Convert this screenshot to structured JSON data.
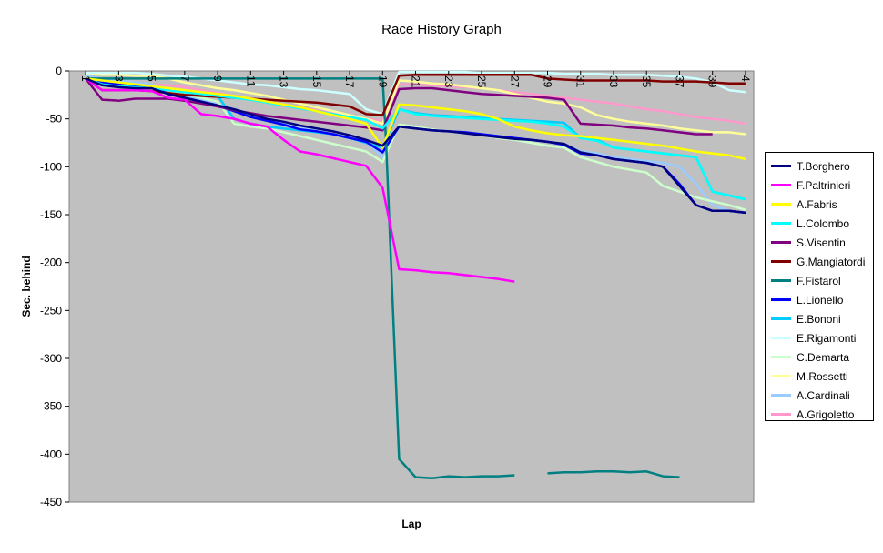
{
  "chart_data": {
    "type": "line",
    "title": "Race History Graph",
    "xlabel": "Lap",
    "ylabel": "Sec. behind",
    "xlim": [
      0,
      41.5
    ],
    "ylim": [
      -450,
      0
    ],
    "yticks": [
      0,
      -50,
      -100,
      -150,
      -200,
      -250,
      -300,
      -350,
      -400,
      -450
    ],
    "xticks": [
      "1",
      "3",
      "5",
      "7",
      "9",
      "11",
      "13",
      "15",
      "17",
      "19",
      "21",
      "23",
      "25",
      "27",
      "29",
      "31",
      "33",
      "35",
      "37",
      "39",
      "4"
    ],
    "grid": false,
    "background": "#c0c0c0",
    "legend_position": "right",
    "series": [
      {
        "name": "T.Borghero",
        "color": "#000080",
        "x": [
          1,
          2,
          3,
          4,
          5,
          6,
          7,
          8,
          9,
          10,
          11,
          12,
          13,
          14,
          15,
          16,
          17,
          18,
          19,
          20,
          21,
          22,
          23,
          24,
          25,
          26,
          27,
          28,
          29,
          30,
          31,
          32,
          33,
          34,
          35,
          36,
          37,
          38,
          39,
          40,
          41
        ],
        "y": [
          -8,
          -15,
          -17,
          -18,
          -18,
          -24,
          -28,
          -32,
          -36,
          -40,
          -45,
          -50,
          -53,
          -57,
          -60,
          -63,
          -67,
          -72,
          -78,
          -58,
          -60,
          -62,
          -63,
          -65,
          -67,
          -69,
          -71,
          -72,
          -74,
          -76,
          -85,
          -88,
          -92,
          -94,
          -96,
          -100,
          -120,
          -140,
          -146,
          -146,
          -148
        ]
      },
      {
        "name": "F.Paltrinieri",
        "color": "#ff00ff",
        "x": [
          1,
          2,
          3,
          4,
          5,
          6,
          7,
          8,
          9,
          10,
          11,
          12,
          13,
          14,
          15,
          16,
          17,
          18,
          19,
          20,
          21,
          22,
          23,
          24,
          25,
          26,
          27
        ],
        "y": [
          -8,
          -20,
          -20,
          -20,
          -21,
          -28,
          -30,
          -45,
          -47,
          -50,
          -55,
          -58,
          -72,
          -84,
          -87,
          -91,
          -95,
          -99,
          -122,
          -207,
          -208,
          -210,
          -211,
          -213,
          -215,
          -217,
          -220
        ]
      },
      {
        "name": "A.Fabris",
        "color": "#ffff00",
        "x": [
          1,
          2,
          3,
          4,
          5,
          6,
          7,
          8,
          9,
          10,
          11,
          12,
          13,
          14,
          15,
          16,
          17,
          18,
          19,
          20,
          21,
          22,
          23,
          24,
          25,
          26,
          27,
          28,
          29,
          30,
          31,
          32,
          33,
          34,
          35,
          36,
          37,
          38,
          39,
          40,
          41
        ],
        "y": [
          -8,
          -10,
          -12,
          -14,
          -16,
          -18,
          -20,
          -22,
          -24,
          -26,
          -29,
          -32,
          -35,
          -38,
          -42,
          -46,
          -50,
          -55,
          -80,
          -35,
          -36,
          -38,
          -40,
          -42,
          -45,
          -50,
          -58,
          -62,
          -65,
          -67,
          -68,
          -70,
          -72,
          -74,
          -76,
          -78,
          -81,
          -84,
          -86,
          -88,
          -92
        ]
      },
      {
        "name": "L.Colombo",
        "color": "#00ffff",
        "x": [
          1,
          2,
          3,
          4,
          5,
          6,
          7,
          8,
          9,
          10,
          11,
          12,
          13,
          14,
          15,
          16,
          17,
          18,
          19,
          20,
          21,
          22,
          23,
          24,
          25,
          26,
          27,
          28,
          29,
          30,
          31,
          32,
          33,
          34,
          35,
          36,
          37,
          38,
          39,
          40,
          41
        ],
        "y": [
          -8,
          -14,
          -16,
          -17,
          -18,
          -20,
          -22,
          -24,
          -26,
          -28,
          -30,
          -33,
          -36,
          -39,
          -42,
          -45,
          -48,
          -51,
          -60,
          -40,
          -45,
          -47,
          -48,
          -49,
          -50,
          -51,
          -52,
          -53,
          -55,
          -58,
          -70,
          -73,
          -80,
          -82,
          -84,
          -86,
          -88,
          -90,
          -126,
          -130,
          -134
        ]
      },
      {
        "name": "S.Visentin",
        "color": "#800080",
        "x": [
          1,
          2,
          3,
          4,
          5,
          6,
          7,
          8,
          9,
          10,
          11,
          12,
          13,
          14,
          15,
          16,
          17,
          18,
          19,
          20,
          21,
          22,
          23,
          24,
          25,
          26,
          27,
          28,
          29,
          30,
          31,
          32,
          33,
          34,
          35,
          36,
          37,
          38,
          39
        ],
        "y": [
          -8,
          -30,
          -31,
          -29,
          -29,
          -29,
          -31,
          -34,
          -37,
          -41,
          -44,
          -47,
          -49,
          -51,
          -53,
          -55,
          -57,
          -59,
          -62,
          -19,
          -18,
          -18,
          -20,
          -22,
          -24,
          -25,
          -26,
          -27,
          -28,
          -30,
          -55,
          -56,
          -57,
          -59,
          -60,
          -62,
          -64,
          -66,
          -66
        ]
      },
      {
        "name": "G.Mangiatordi",
        "color": "#800000",
        "x": [
          1,
          2,
          3,
          4,
          5,
          6,
          7,
          8,
          9,
          10,
          11,
          12,
          13,
          14,
          15,
          16,
          17,
          18,
          19,
          20,
          21,
          22,
          23,
          24,
          25,
          26,
          27,
          28,
          29,
          30,
          31,
          32,
          33,
          34,
          35,
          36,
          37,
          38,
          39,
          40,
          41
        ],
        "y": [
          -8,
          -20,
          -20,
          -20,
          -21,
          -23,
          -25,
          -26,
          -27,
          -28,
          -29,
          -30,
          -31,
          -32,
          -33,
          -35,
          -37,
          -45,
          -46,
          -5,
          -4,
          -4,
          -4,
          -4,
          -4,
          -4,
          -4,
          -4,
          -8,
          -9,
          -10,
          -10,
          -10,
          -10,
          -10,
          -11,
          -11,
          -11,
          -12,
          -13,
          -13
        ]
      },
      {
        "name": "F.Fistarol",
        "color": "#008080",
        "x": [
          1,
          2,
          3,
          4,
          5,
          6,
          7,
          8,
          9,
          10,
          11,
          12,
          13,
          14,
          15,
          16,
          17,
          18,
          19,
          19.2,
          20,
          21,
          22,
          23,
          24,
          25,
          26,
          27
        ],
        "y": [
          -8,
          -8,
          -8,
          -8,
          -8,
          -8,
          -8,
          -8,
          -8,
          -8,
          -8,
          -8,
          -8,
          -8,
          -8,
          -8,
          -8,
          -8,
          -8,
          -70,
          -405,
          -424,
          -425,
          -423,
          -424,
          -423,
          -423,
          -422
        ],
        "x2": [
          29,
          30,
          31,
          32,
          33,
          34,
          35,
          36,
          37
        ],
        "y2": [
          -420,
          -419,
          -419,
          -418,
          -418,
          -419,
          -418,
          -423,
          -424
        ]
      },
      {
        "name": "L.Lionello",
        "color": "#0000ff",
        "x": [
          1,
          2,
          3,
          4,
          5,
          6,
          7,
          8,
          9,
          10,
          11,
          12,
          13,
          14,
          15,
          16,
          17,
          18,
          19,
          20,
          21,
          22,
          23,
          24,
          25,
          26,
          27,
          28,
          29,
          30,
          31,
          32,
          33,
          34,
          35,
          36,
          37,
          38,
          39,
          40,
          41
        ],
        "y": [
          -8,
          -12,
          -14,
          -15,
          -16,
          -24,
          -28,
          -32,
          -36,
          -42,
          -48,
          -52,
          -56,
          -61,
          -63,
          -66,
          -70,
          -74,
          -85,
          -58,
          -60,
          -62,
          -63,
          -64,
          -66,
          -68,
          -70,
          -72,
          -74,
          -77,
          -86,
          -88,
          -92,
          -94,
          -96,
          -100,
          -118,
          -140,
          -146,
          -146,
          -148
        ]
      },
      {
        "name": "E.Bononi",
        "color": "#00ccff",
        "x": [
          1,
          2,
          3,
          4,
          5,
          6,
          7,
          8,
          9,
          10,
          11,
          12,
          13,
          14,
          15,
          16,
          17,
          18,
          19,
          20,
          21,
          22,
          23,
          24,
          25,
          26,
          27,
          28,
          29,
          30,
          31,
          32,
          33,
          34,
          35,
          36,
          37,
          38,
          39,
          40,
          41
        ],
        "y": [
          -8,
          -12,
          -15,
          -16,
          -17,
          -20,
          -22,
          -24,
          -26,
          -50,
          -55,
          -58,
          -60,
          -62,
          -64,
          -66,
          -70,
          -75,
          -80,
          -40,
          -44,
          -46,
          -47,
          -48,
          -49,
          -50,
          -51,
          -52,
          -53,
          -54,
          -70,
          -72,
          -80,
          -82,
          -84,
          -86,
          -88,
          -90,
          -126,
          -130,
          -134
        ]
      },
      {
        "name": "E.Rigamonti",
        "color": "#ccffff",
        "x": [
          1,
          2,
          3,
          4,
          5,
          6,
          7,
          8,
          9,
          10,
          11,
          12,
          13,
          14,
          15,
          16,
          17,
          18,
          19,
          20,
          21,
          22,
          23,
          24,
          25,
          26,
          27,
          28,
          29,
          30,
          31,
          32,
          33,
          34,
          35,
          36,
          37,
          38,
          39,
          40,
          41
        ],
        "y": [
          -2,
          -2,
          -2,
          -2,
          -3,
          -5,
          -6,
          -8,
          -10,
          -12,
          -14,
          -15,
          -17,
          -19,
          -20,
          -22,
          -24,
          -40,
          -45,
          -1,
          -1,
          -1,
          -1,
          -1,
          -2,
          -2,
          -2,
          -2,
          -2,
          -3,
          -3,
          -3,
          -4,
          -4,
          -4,
          -5,
          -6,
          -8,
          -12,
          -20,
          -22
        ]
      },
      {
        "name": "C.Demarta",
        "color": "#ccffcc",
        "x": [
          1,
          2,
          3,
          4,
          5,
          6,
          7,
          8,
          9,
          10,
          11,
          12,
          13,
          14,
          15,
          16,
          17,
          18,
          19,
          20,
          21,
          22,
          23,
          24,
          25,
          26,
          27,
          28,
          29,
          30,
          31,
          32,
          33,
          34,
          35,
          36,
          37,
          38,
          39,
          40,
          41
        ],
        "y": [
          -8,
          -10,
          -12,
          -14,
          -16,
          -20,
          -24,
          -28,
          -32,
          -55,
          -58,
          -60,
          -64,
          -68,
          -72,
          -76,
          -80,
          -84,
          -95,
          -56,
          -58,
          -61,
          -63,
          -65,
          -67,
          -70,
          -72,
          -75,
          -78,
          -80,
          -90,
          -95,
          -100,
          -103,
          -106,
          -120,
          -126,
          -132,
          -136,
          -140,
          -145
        ]
      },
      {
        "name": "M.Rossetti",
        "color": "#ffff99",
        "x": [
          1,
          2,
          3,
          4,
          5,
          6,
          7,
          8,
          9,
          10,
          11,
          12,
          13,
          14,
          15,
          16,
          17,
          18,
          19,
          20,
          21,
          22,
          23,
          24,
          25,
          26,
          27,
          28,
          29,
          30,
          31,
          32,
          33,
          34,
          35,
          36,
          37,
          38,
          39,
          40,
          41
        ],
        "y": [
          -3,
          -4,
          -4,
          -5,
          -5,
          -8,
          -12,
          -15,
          -18,
          -20,
          -23,
          -26,
          -30,
          -34,
          -38,
          -42,
          -46,
          -50,
          -55,
          -10,
          -11,
          -13,
          -14,
          -16,
          -18,
          -20,
          -24,
          -28,
          -32,
          -34,
          -38,
          -46,
          -50,
          -53,
          -55,
          -57,
          -60,
          -62,
          -64,
          -64,
          -66
        ]
      },
      {
        "name": "A.Cardinali",
        "color": "#99ccff",
        "x": [
          1,
          2,
          3,
          4,
          5,
          6,
          7,
          8,
          9,
          10,
          11,
          12,
          13,
          14,
          15,
          16,
          17,
          18,
          19,
          20,
          21,
          22,
          23,
          24,
          25,
          26,
          27,
          28,
          29,
          30,
          31,
          32,
          33,
          34,
          35,
          36,
          37,
          38,
          39,
          40,
          41
        ],
        "y": [
          -5,
          -8,
          -10,
          -12,
          -14,
          -20,
          -25,
          -30,
          -35,
          -40,
          -45,
          -50,
          -54,
          -58,
          -62,
          -66,
          -70,
          -74,
          -90,
          -58,
          -60,
          -62,
          -63,
          -65,
          -67,
          -69,
          -71,
          -72,
          -74,
          -76,
          -84,
          -86,
          -90,
          -92,
          -94,
          -96,
          -100,
          -118,
          -140,
          -146,
          -148
        ]
      },
      {
        "name": "A.Grigoletto",
        "color": "#ff99cc",
        "x": [
          1,
          2,
          3,
          4,
          5,
          6,
          7,
          8,
          9,
          10,
          11,
          12,
          13,
          14,
          15,
          16,
          17,
          18,
          19,
          20,
          21,
          22,
          23,
          24,
          25,
          26,
          27,
          28,
          29,
          30,
          31,
          32,
          33,
          34,
          35,
          36,
          37,
          38,
          39,
          40,
          41
        ],
        "y": [
          -8,
          -10,
          -12,
          -13,
          -14,
          -15,
          -17,
          -20,
          -23,
          -26,
          -29,
          -32,
          -35,
          -38,
          -41,
          -44,
          -47,
          -50,
          -52,
          -14,
          -14,
          -15,
          -16,
          -17,
          -18,
          -20,
          -22,
          -24,
          -26,
          -28,
          -30,
          -32,
          -34,
          -37,
          -40,
          -42,
          -45,
          -48,
          -50,
          -52,
          -55
        ]
      }
    ]
  }
}
